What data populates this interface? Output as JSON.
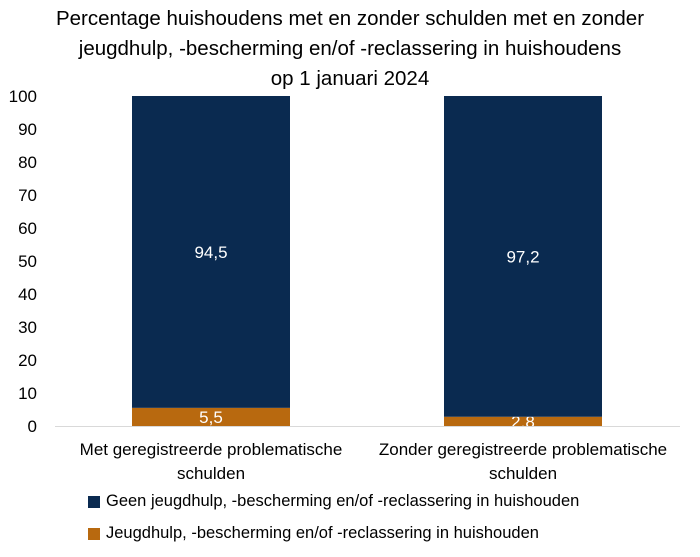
{
  "title_lines": [
    "Percentage huishoudens met en zonder schulden met en zonder",
    "jeugdhulp, -bescherming en/of -reclassering in huishoudens",
    "op 1 januari 2024"
  ],
  "chart_data": {
    "type": "bar",
    "stacked": true,
    "categories": [
      [
        "Met geregistreerde problematische",
        "schulden"
      ],
      [
        "Zonder geregistreerde problematische",
        "schulden"
      ]
    ],
    "series": [
      {
        "name": "Jeugdhulp, -bescherming en/of -reclassering in huishouden",
        "values": [
          5.5,
          2.8
        ],
        "labels": [
          "5,5",
          "2,8"
        ],
        "color": "#B8690F"
      },
      {
        "name": "Geen jeugdhulp, -bescherming en/of -reclassering in huishouden",
        "values": [
          94.5,
          97.2
        ],
        "labels": [
          "94,5",
          "97,2"
        ],
        "color": "#0A2A50"
      }
    ],
    "ylim": [
      0,
      100
    ],
    "yticks": [
      "0",
      "10",
      "20",
      "30",
      "40",
      "50",
      "60",
      "70",
      "80",
      "90",
      "100"
    ],
    "ytick_values": [
      0,
      10,
      20,
      30,
      40,
      50,
      60,
      70,
      80,
      90,
      100
    ],
    "grid": false,
    "legend_position": "bottom",
    "legend_order": [
      1,
      0
    ]
  }
}
